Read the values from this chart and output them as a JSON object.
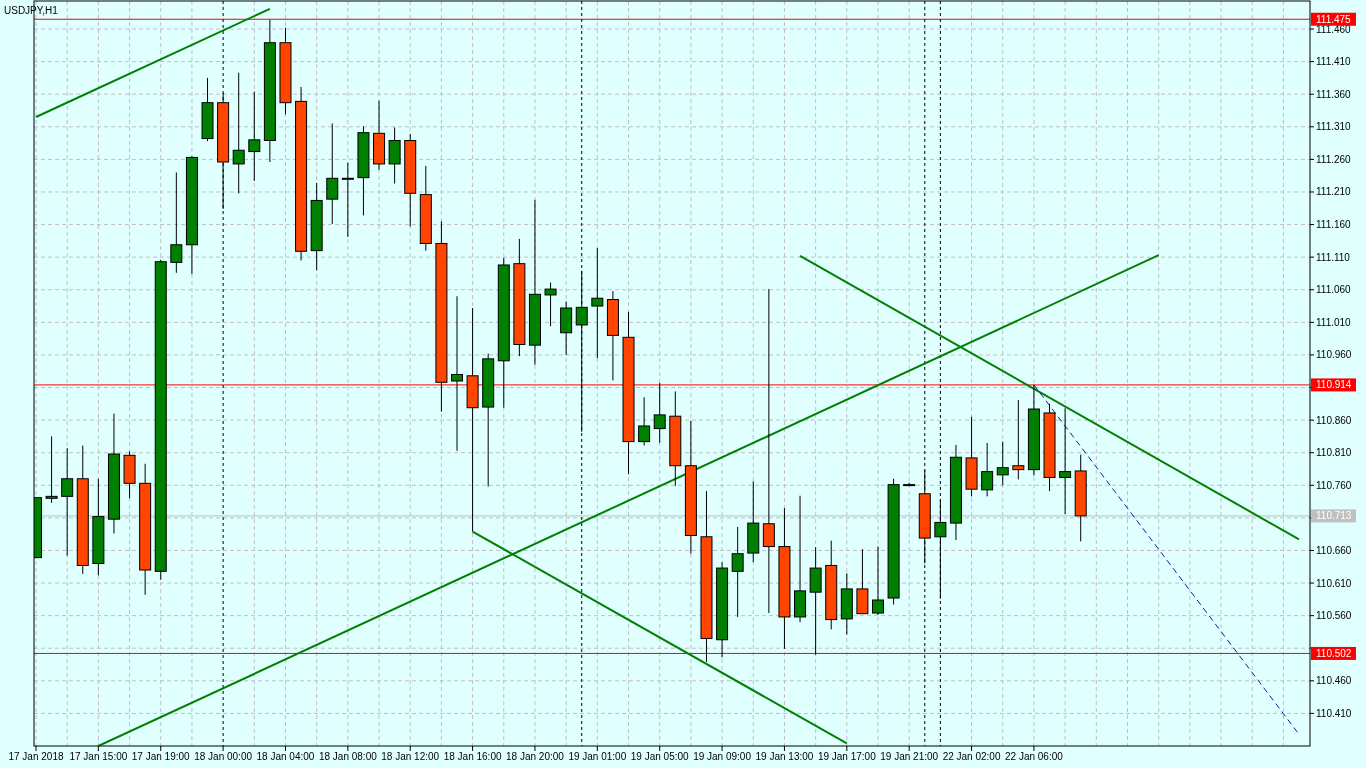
{
  "chart_data": {
    "type": "candlestick",
    "title": "USDJPY,H1",
    "categories": [
      "17 Jan 2018",
      null,
      null,
      null,
      "17 Jan 15:00",
      null,
      null,
      null,
      "17 Jan 19:00",
      null,
      null,
      null,
      "18 Jan 00:00",
      null,
      null,
      null,
      "18 Jan 04:00",
      null,
      null,
      null,
      "18 Jan 08:00",
      null,
      null,
      null,
      "18 Jan 12:00",
      null,
      null,
      null,
      "18 Jan 16:00",
      null,
      null,
      null,
      "18 Jan 20:00",
      null,
      null,
      null,
      "19 Jan 01:00",
      null,
      null,
      null,
      "19 Jan 05:00",
      null,
      null,
      null,
      "19 Jan 09:00",
      null,
      null,
      null,
      "19 Jan 13:00",
      null,
      null,
      null,
      "19 Jan 17:00",
      null,
      null,
      null,
      "19 Jan 21:00",
      null,
      null,
      null,
      "22 Jan 02:00",
      null,
      null,
      null,
      "22 Jan 06:00",
      null,
      null,
      null,
      null,
      null,
      null,
      null,
      null,
      null,
      null,
      null,
      null,
      null,
      null,
      null,
      null,
      null
    ],
    "ohlc": [
      [
        110.649,
        110.741,
        110.649,
        110.741
      ],
      [
        110.74,
        110.835,
        110.733,
        110.743
      ],
      [
        110.743,
        110.817,
        110.652,
        110.77
      ],
      [
        110.77,
        110.821,
        110.624,
        110.637
      ],
      [
        110.64,
        110.77,
        110.622,
        110.712
      ],
      [
        110.708,
        110.87,
        110.686,
        110.808
      ],
      [
        110.806,
        110.812,
        110.74,
        110.763
      ],
      [
        110.763,
        110.793,
        110.592,
        110.63
      ],
      [
        110.628,
        111.106,
        110.615,
        111.103
      ],
      [
        111.102,
        111.24,
        111.086,
        111.129
      ],
      [
        111.129,
        111.265,
        111.084,
        111.263
      ],
      [
        111.292,
        111.385,
        111.288,
        111.347
      ],
      [
        111.347,
        111.362,
        111.184,
        111.256
      ],
      [
        111.253,
        111.393,
        111.208,
        111.274
      ],
      [
        111.272,
        111.364,
        111.227,
        111.29
      ],
      [
        111.289,
        111.474,
        111.256,
        111.439
      ],
      [
        111.439,
        111.462,
        111.329,
        111.347
      ],
      [
        111.349,
        111.371,
        111.105,
        111.119
      ],
      [
        111.12,
        111.224,
        111.09,
        111.197
      ],
      [
        111.199,
        111.315,
        111.161,
        111.231
      ],
      [
        111.23,
        111.255,
        111.141,
        111.231
      ],
      [
        111.232,
        111.311,
        111.174,
        111.301
      ],
      [
        111.3,
        111.35,
        111.244,
        111.253
      ],
      [
        111.253,
        111.309,
        111.223,
        111.289
      ],
      [
        111.289,
        111.299,
        111.157,
        111.208
      ],
      [
        111.206,
        111.25,
        111.12,
        111.131
      ],
      [
        111.131,
        111.165,
        110.873,
        110.918
      ],
      [
        110.92,
        111.05,
        110.813,
        110.93
      ],
      [
        110.928,
        111.032,
        110.689,
        110.879
      ],
      [
        110.88,
        110.962,
        110.758,
        110.954
      ],
      [
        110.951,
        111.109,
        110.879,
        111.098
      ],
      [
        111.1,
        111.138,
        110.958,
        110.976
      ],
      [
        110.975,
        111.198,
        110.945,
        111.053
      ],
      [
        111.052,
        111.071,
        111.004,
        111.061
      ],
      [
        110.994,
        111.042,
        110.96,
        111.032
      ],
      [
        111.006,
        111.089,
        110.842,
        111.033
      ],
      [
        111.035,
        111.124,
        110.955,
        111.047
      ],
      [
        111.045,
        111.058,
        110.921,
        110.99
      ],
      [
        110.987,
        111.026,
        110.777,
        110.827
      ],
      [
        110.827,
        110.895,
        110.821,
        110.851
      ],
      [
        110.847,
        110.917,
        110.825,
        110.868
      ],
      [
        110.866,
        110.904,
        110.759,
        110.79
      ],
      [
        110.79,
        110.859,
        110.655,
        110.683
      ],
      [
        110.681,
        110.751,
        110.489,
        110.525
      ],
      [
        110.523,
        110.642,
        110.496,
        110.633
      ],
      [
        110.628,
        110.696,
        110.558,
        110.655
      ],
      [
        110.656,
        110.766,
        110.642,
        110.702
      ],
      [
        110.701,
        111.061,
        110.564,
        110.666
      ],
      [
        110.666,
        110.725,
        110.509,
        110.558
      ],
      [
        110.558,
        110.744,
        110.55,
        110.598
      ],
      [
        110.596,
        110.665,
        110.5,
        110.633
      ],
      [
        110.637,
        110.675,
        110.539,
        110.554
      ],
      [
        110.555,
        110.625,
        110.531,
        110.601
      ],
      [
        110.601,
        110.662,
        110.563,
        110.563
      ],
      [
        110.564,
        110.666,
        110.561,
        110.584
      ],
      [
        110.587,
        110.77,
        110.577,
        110.761
      ],
      [
        110.761,
        110.764,
        110.76,
        110.761
      ],
      [
        110.747,
        110.783,
        110.64,
        110.679
      ],
      [
        110.681,
        110.738,
        110.586,
        110.703
      ],
      [
        110.702,
        110.822,
        110.676,
        110.803
      ],
      [
        110.802,
        110.865,
        110.743,
        110.754
      ],
      [
        110.753,
        110.825,
        110.743,
        110.781
      ],
      [
        110.776,
        110.827,
        110.76,
        110.787
      ],
      [
        110.79,
        110.891,
        110.769,
        110.784
      ],
      [
        110.784,
        110.914,
        110.775,
        110.877
      ],
      [
        110.871,
        110.885,
        110.751,
        110.772
      ],
      [
        110.772,
        110.878,
        110.716,
        110.781
      ],
      [
        110.782,
        110.807,
        110.674,
        110.713
      ],
      null,
      null,
      null,
      null,
      null,
      null,
      null,
      null,
      null,
      null,
      null,
      null,
      null,
      null
    ],
    "series": [
      {
        "type": "line",
        "color": "#008000",
        "values": [
          111.325,
          null,
          null,
          null,
          null,
          null,
          null,
          null,
          null,
          null,
          null,
          null,
          null,
          null,
          null,
          111.491,
          null,
          null,
          null,
          null,
          null,
          null,
          null,
          null,
          null,
          null,
          null,
          null,
          null,
          null,
          null,
          null,
          null,
          null,
          null,
          null,
          null,
          null,
          null,
          null,
          null,
          null,
          null,
          null,
          null,
          null,
          null,
          null,
          null,
          null,
          null,
          null,
          null,
          null,
          null,
          null,
          null,
          null,
          null,
          null,
          null,
          null,
          null,
          null,
          null,
          null,
          null,
          null,
          null,
          null,
          null,
          null,
          null,
          null,
          null,
          null,
          null,
          null,
          null,
          null,
          null,
          null
        ]
      },
      {
        "type": "line",
        "color": "#008000",
        "values": [
          null,
          null,
          null,
          null,
          110.36,
          null,
          null,
          null,
          null,
          null,
          null,
          null,
          null,
          null,
          null,
          null,
          null,
          null,
          null,
          null,
          null,
          null,
          null,
          null,
          null,
          null,
          null,
          null,
          null,
          null,
          null,
          null,
          null,
          null,
          null,
          null,
          null,
          null,
          null,
          null,
          null,
          null,
          null,
          null,
          null,
          null,
          null,
          null,
          null,
          null,
          null,
          null,
          null,
          null,
          null,
          null,
          null,
          null,
          null,
          null,
          null,
          null,
          null,
          null,
          null,
          null,
          null,
          null,
          null,
          null,
          null,
          null,
          111.113,
          null,
          null,
          null,
          null,
          null,
          null,
          null,
          null,
          null
        ]
      },
      {
        "type": "line",
        "color": "#008000",
        "values": [
          null,
          null,
          null,
          null,
          null,
          null,
          null,
          null,
          null,
          null,
          null,
          null,
          null,
          null,
          null,
          null,
          null,
          null,
          null,
          null,
          null,
          null,
          null,
          null,
          null,
          null,
          null,
          null,
          null,
          null,
          null,
          null,
          null,
          null,
          null,
          null,
          null,
          null,
          null,
          null,
          null,
          null,
          null,
          null,
          null,
          null,
          null,
          null,
          null,
          111.112,
          null,
          null,
          null,
          null,
          null,
          null,
          null,
          null,
          null,
          null,
          null,
          null,
          null,
          null,
          null,
          null,
          null,
          null,
          null,
          null,
          null,
          null,
          null,
          null,
          null,
          null,
          null,
          null,
          null,
          null,
          null,
          110.677
        ]
      },
      {
        "type": "line",
        "color": "#008000",
        "values": [
          null,
          null,
          null,
          null,
          null,
          null,
          null,
          null,
          null,
          null,
          null,
          null,
          null,
          null,
          null,
          null,
          null,
          null,
          null,
          null,
          null,
          null,
          null,
          null,
          null,
          null,
          null,
          null,
          110.689,
          null,
          null,
          null,
          null,
          null,
          null,
          null,
          null,
          null,
          null,
          null,
          null,
          null,
          null,
          null,
          null,
          null,
          null,
          null,
          null,
          null,
          null,
          null,
          110.364,
          null,
          null,
          null,
          null,
          null,
          null,
          null,
          null,
          null,
          null,
          null,
          null,
          null,
          null,
          null,
          null,
          null,
          null,
          null,
          null,
          null,
          null,
          null,
          null,
          null,
          null,
          null,
          null,
          null
        ]
      },
      {
        "type": "line",
        "color": "#1a1aa0",
        "line_style": "dashed",
        "values": [
          null,
          null,
          null,
          null,
          null,
          null,
          null,
          null,
          null,
          null,
          null,
          null,
          null,
          null,
          null,
          null,
          null,
          null,
          null,
          null,
          null,
          null,
          null,
          null,
          null,
          null,
          null,
          null,
          null,
          null,
          null,
          null,
          null,
          null,
          null,
          null,
          null,
          null,
          null,
          null,
          null,
          null,
          null,
          null,
          null,
          null,
          null,
          null,
          null,
          null,
          null,
          null,
          null,
          null,
          null,
          null,
          null,
          null,
          null,
          null,
          null,
          null,
          null,
          null,
          110.914,
          null,
          null,
          null,
          null,
          null,
          null,
          null,
          null,
          null,
          null,
          null,
          null,
          null,
          null,
          null,
          null,
          110.378
        ]
      }
    ],
    "ylim": [
      110.36,
      111.503
    ],
    "yticks": [
      {
        "value": 111.46,
        "label": "111.460"
      },
      {
        "value": 111.41,
        "label": "111.410"
      },
      {
        "value": 111.36,
        "label": "111.360"
      },
      {
        "value": 111.31,
        "label": "111.310"
      },
      {
        "value": 111.26,
        "label": "111.260"
      },
      {
        "value": 111.21,
        "label": "111.210"
      },
      {
        "value": 111.16,
        "label": "111.160"
      },
      {
        "value": 111.11,
        "label": "111.110"
      },
      {
        "value": 111.06,
        "label": "111.060"
      },
      {
        "value": 111.01,
        "label": "111.010"
      },
      {
        "value": 110.96,
        "label": "110.960"
      },
      {
        "value": 110.91,
        "label": null
      },
      {
        "value": 110.86,
        "label": "110.860"
      },
      {
        "value": 110.81,
        "label": "110.810"
      },
      {
        "value": 110.76,
        "label": "110.760"
      },
      {
        "value": 110.71,
        "label": null
      },
      {
        "value": 110.66,
        "label": "110.660"
      },
      {
        "value": 110.61,
        "label": "110.610"
      },
      {
        "value": 110.56,
        "label": "110.560"
      },
      {
        "value": 110.51,
        "label": null
      },
      {
        "value": 110.46,
        "label": "110.460"
      },
      {
        "value": 110.41,
        "label": "110.410"
      }
    ],
    "grid": true,
    "ref_lines": [
      {
        "axis": "y",
        "value": 111.475,
        "label": "111.475",
        "color": "#ff0000"
      },
      {
        "axis": "y",
        "value": 110.914,
        "label": "110.914",
        "color": "#ff0000"
      },
      {
        "axis": "y",
        "value": 110.713,
        "label": "110.713",
        "color": "#c0c0c0"
      },
      {
        "axis": "y",
        "value": 110.502,
        "label": "110.502",
        "color": "#ff0000"
      }
    ]
  }
}
